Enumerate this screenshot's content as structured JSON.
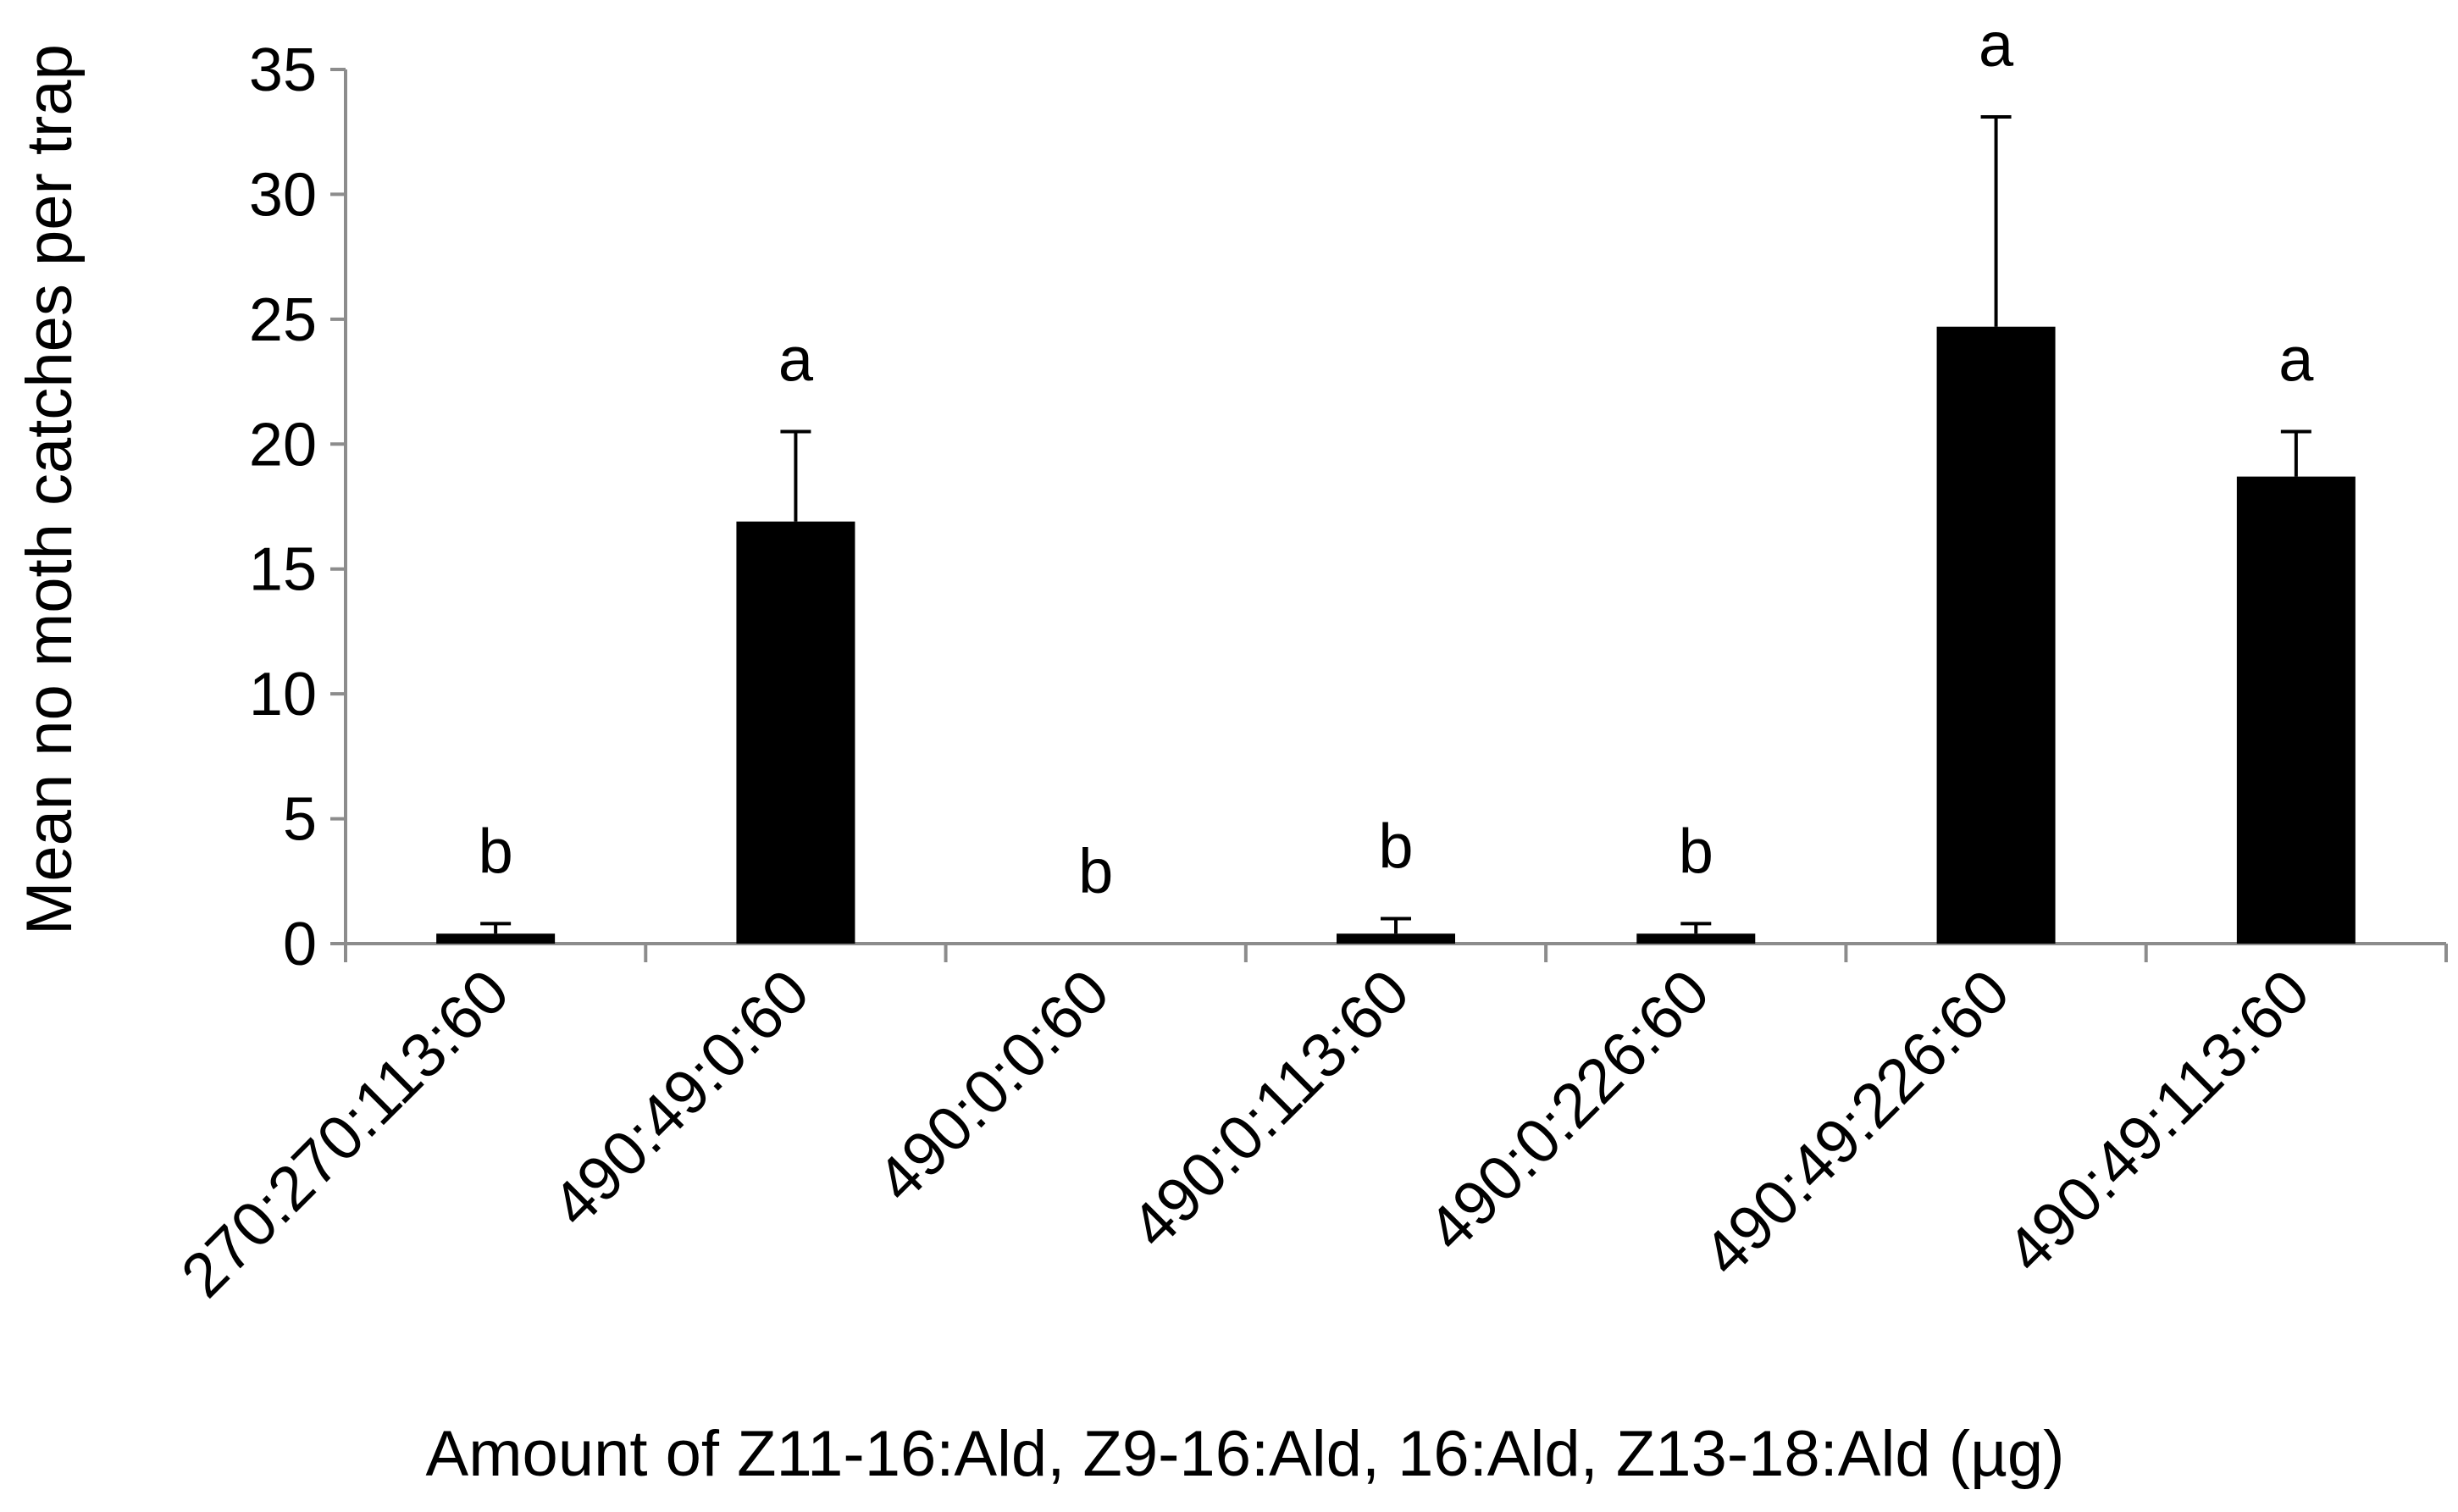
{
  "chart_data": {
    "type": "bar",
    "title": "",
    "xlabel": "Amount of Z11-16:Ald, Z9-16:Ald, 16:Ald, Z13-18:Ald (µg)",
    "ylabel": "Mean no moth catches per trap",
    "ylim": [
      0,
      35
    ],
    "yticks": [
      0,
      5,
      10,
      15,
      20,
      25,
      30,
      35
    ],
    "grid": false,
    "legend": "none",
    "bar_color": "#000000",
    "categories": [
      "270:270:113:60",
      "490:49:0:60",
      "490:0:0:60",
      "490:0:113:60",
      "490:0:226:60",
      "490:49:226:60",
      "490:49:113:60"
    ],
    "values": [
      0.4,
      16.9,
      0,
      0.4,
      0.4,
      24.7,
      18.7
    ],
    "errors": [
      0.4,
      3.6,
      0,
      0.6,
      0.4,
      8.4,
      1.8
    ],
    "significance": [
      "b",
      "a",
      "b",
      "b",
      "b",
      "a",
      "a"
    ]
  }
}
